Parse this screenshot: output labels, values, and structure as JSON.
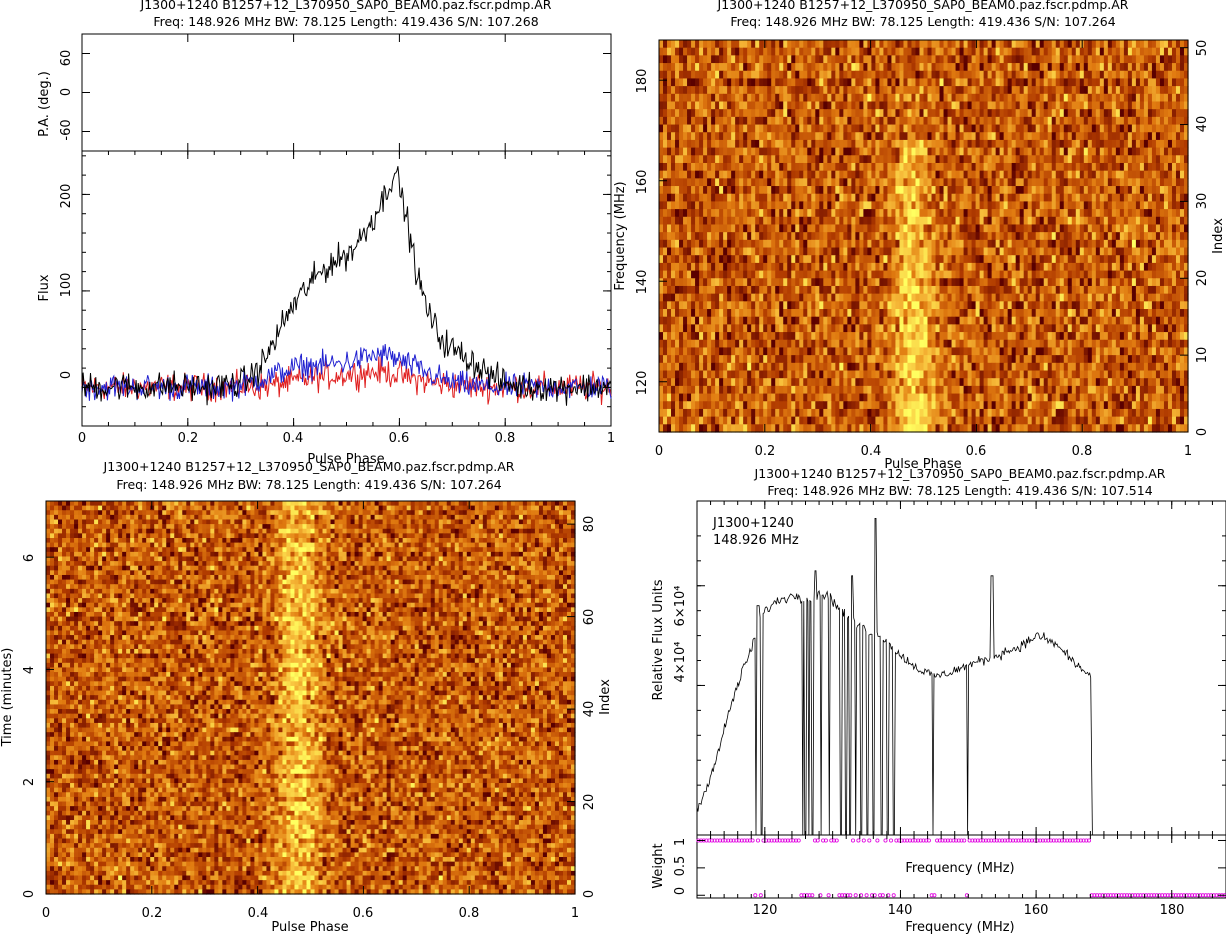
{
  "chart_data": [
    {
      "type": "line",
      "panel": "profile",
      "title": "J1300+1240  B1257+12_L370950_SAP0_BEAM0.paz.fscr.pdmp.AR",
      "subtitle": "Freq: 148.926 MHz BW: 78.125 Length: 419.436 S/N: 107.268",
      "top_ylabel": "P.A. (deg.)",
      "top_ylim": [
        -90,
        90
      ],
      "top_yticks": [
        "60",
        "0",
        "-60"
      ],
      "xlabel": "Pulse Phase",
      "ylabel": "Flux",
      "xlim": [
        0,
        1
      ],
      "ylim": [
        -40,
        245
      ],
      "xticks": [
        "0",
        "0.2",
        "0.4",
        "0.6",
        "0.8",
        "1"
      ],
      "yticks": [
        "0",
        "100",
        "200"
      ],
      "series": [
        {
          "color": "#000000",
          "values": [
            0,
            1,
            0,
            2,
            1,
            0,
            1,
            0,
            2,
            1,
            0,
            1,
            0,
            2,
            3,
            6,
            14,
            30,
            52,
            75,
            92,
            106,
            118,
            128,
            134,
            142,
            158,
            176,
            198,
            226,
            180,
            118,
            80,
            55,
            42,
            35,
            28,
            20,
            11,
            5,
            2,
            1,
            0,
            1,
            0,
            0,
            1,
            0,
            1,
            0
          ]
        },
        {
          "color": "#e02020",
          "values": [
            0,
            0,
            1,
            0,
            0,
            1,
            0,
            0,
            1,
            0,
            0,
            0,
            1,
            0,
            0,
            1,
            0,
            2,
            3,
            5,
            7,
            9,
            11,
            12,
            13,
            14,
            15,
            16,
            16,
            14,
            11,
            8,
            6,
            4,
            3,
            2,
            1,
            1,
            0,
            0,
            1,
            0,
            0,
            1,
            0,
            0,
            1,
            0,
            0,
            0
          ]
        },
        {
          "color": "#2020d0",
          "values": [
            0,
            0,
            0,
            1,
            0,
            0,
            1,
            0,
            0,
            0,
            1,
            0,
            0,
            0,
            1,
            3,
            6,
            10,
            14,
            18,
            21,
            22,
            23,
            24,
            25,
            27,
            30,
            33,
            34,
            30,
            25,
            20,
            15,
            10,
            6,
            3,
            2,
            1,
            0,
            0,
            0,
            1,
            0,
            0,
            1,
            0,
            0,
            0,
            1,
            0
          ]
        }
      ]
    },
    {
      "type": "heatmap",
      "panel": "phase-frequency",
      "title": "J1300+1240  B1257+12_L370950_SAP0_BEAM0.paz.fscr.pdmp.AR",
      "subtitle": "Freq: 148.926 MHz BW: 78.125 Length: 419.436 S/N: 107.264",
      "xlabel": "Pulse Phase",
      "ylabel": "Frequency (MHz)",
      "right_ylabel": "Index",
      "xlim": [
        0,
        1
      ],
      "ylim": [
        110,
        188
      ],
      "right_ylim": [
        0,
        51
      ],
      "xticks": [
        "0",
        "0.2",
        "0.4",
        "0.6",
        "0.8",
        "1"
      ],
      "yticks": [
        "120",
        "140",
        "160",
        "180"
      ],
      "right_yticks": [
        "0",
        "10",
        "20",
        "30",
        "40",
        "50"
      ],
      "colormap": [
        "#5a0000",
        "#b03a00",
        "#e07a10",
        "#f7bc3a",
        "#ffff60"
      ],
      "pulse_center_phase": 0.48,
      "pulse_width_phase": 0.09,
      "signal_freq_range_mhz": [
        110,
        168
      ]
    },
    {
      "type": "heatmap",
      "panel": "phase-time",
      "title": "J1300+1240  B1257+12_L370950_SAP0_BEAM0.paz.fscr.pdmp.AR",
      "subtitle": "Freq: 148.926 MHz BW: 78.125 Length: 419.436 S/N: 107.264",
      "xlabel": "Pulse Phase",
      "ylabel": "Time (minutes)",
      "right_ylabel": "Index",
      "xlim": [
        0,
        1
      ],
      "ylim": [
        0,
        7
      ],
      "right_ylim": [
        0,
        85
      ],
      "xticks": [
        "0",
        "0.2",
        "0.4",
        "0.6",
        "0.8",
        "1"
      ],
      "yticks": [
        "0",
        "2",
        "4",
        "6"
      ],
      "right_yticks": [
        "0",
        "20",
        "40",
        "60",
        "80"
      ],
      "colormap": [
        "#5a0000",
        "#b03a00",
        "#e07a10",
        "#f7bc3a",
        "#ffff60"
      ],
      "pulse_center_phase": 0.48,
      "pulse_width_phase": 0.09
    },
    {
      "type": "line",
      "panel": "bandpass",
      "title": "J1300+1240  B1257+12_L370950_SAP0_BEAM0.paz.fscr.pdmp.AR",
      "subtitle": "Freq: 148.926 MHz BW: 78.125 Length: 419.436 S/N: 107.514",
      "annotation": [
        "J1300+1240",
        "148.926 MHz"
      ],
      "xlabel": "Frequency (MHz)",
      "inner_xlabel": "Frequency (MHz)",
      "ylabel": "Relative Flux Units",
      "weight_ylabel": "Weight",
      "xlim": [
        110,
        188
      ],
      "ylim": [
        10000,
        77000
      ],
      "weight_ylim": [
        -0.05,
        1.1
      ],
      "xticks": [
        "120",
        "140",
        "160",
        "180"
      ],
      "yticks": [
        {
          "value": 40000,
          "label": "4×10⁴"
        },
        {
          "value": 60000,
          "label": "6×10⁴"
        }
      ],
      "weight_yticks": [
        "0",
        "0.5",
        "1"
      ],
      "x": [
        110,
        111,
        112,
        113,
        114,
        115,
        116,
        117,
        118,
        119,
        120,
        121,
        122,
        123,
        124,
        125,
        126,
        127,
        128,
        129,
        130,
        131,
        132,
        133,
        134,
        135,
        136,
        137,
        138,
        139,
        140,
        141,
        142,
        143,
        144,
        145,
        146,
        147,
        148,
        149,
        150,
        151,
        152,
        153,
        154,
        155,
        156,
        157,
        158,
        159,
        160,
        161,
        162,
        163,
        164,
        165,
        166,
        167,
        168
      ],
      "values": [
        15000,
        18000,
        22000,
        26000,
        31000,
        36000,
        40000,
        44000,
        47000,
        53000,
        55000,
        56000,
        57000,
        57500,
        58000,
        58000,
        57500,
        57000,
        58000,
        58500,
        57000,
        55500,
        54000,
        52500,
        52000,
        51000,
        50500,
        50000,
        49000,
        47000,
        46000,
        45000,
        44000,
        43000,
        42500,
        42000,
        42000,
        42500,
        43000,
        43500,
        44000,
        44500,
        45000,
        45500,
        46000,
        46500,
        47000,
        47500,
        48000,
        49000,
        50000,
        49500,
        49000,
        48000,
        47000,
        45500,
        44000,
        43000,
        42000
      ],
      "spikes": [
        {
          "x": 119,
          "value": 56000
        },
        {
          "x": 122.5,
          "value": 57500
        },
        {
          "x": 127.5,
          "value": 63000
        },
        {
          "x": 132.8,
          "value": 62000
        },
        {
          "x": 136.3,
          "value": 73500
        },
        {
          "x": 153.5,
          "value": 62000
        }
      ],
      "zapped_mhz": [
        118.7,
        119.5,
        125.6,
        126.0,
        126.5,
        127.0,
        128.3,
        129.5,
        131.2,
        132.0,
        132.6,
        133.4,
        134.2,
        135.1,
        136.0,
        137.2,
        138.1,
        139.0,
        144.8,
        149.9,
        168.4
      ],
      "weight_zero_ranges_mhz": [
        [
          168.3,
          188
        ]
      ],
      "weight_one_ranges_mhz": [
        [
          110,
          168.2
        ]
      ],
      "weight_color": "#e000e0"
    }
  ]
}
